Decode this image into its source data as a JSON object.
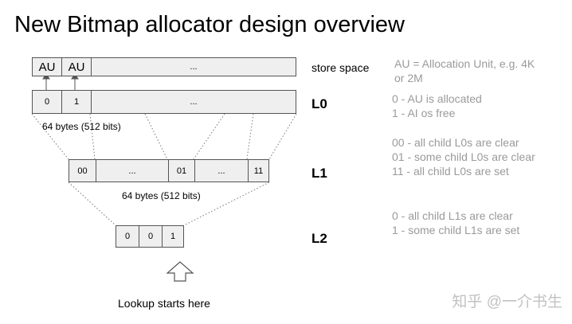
{
  "title": "New Bitmap allocator design overview",
  "store_space": {
    "label": "store space",
    "cells": [
      "AU",
      "AU",
      "..."
    ]
  },
  "l0": {
    "level": "L0",
    "cells": [
      "0",
      "1",
      "..."
    ],
    "caption": "64 bytes (512 bits)"
  },
  "l1": {
    "level": "L1",
    "cells": [
      "00",
      "...",
      "01",
      "...",
      "11"
    ],
    "caption": "64 bytes (512 bits)"
  },
  "l2": {
    "level": "L2",
    "cells": [
      "0",
      "0",
      "1"
    ]
  },
  "lookup": {
    "label": "Lookup starts here",
    "icon": "up-arrow-icon"
  },
  "notes": {
    "au": [
      "AU = Allocation Unit, e.g. 4K",
      "or 2M"
    ],
    "l0": [
      "0 - AU is allocated",
      "1 - AI os free"
    ],
    "l1": [
      "00 - all child L0s are clear",
      "01 - some child L0s are clear",
      "11 - all child L0s are set"
    ],
    "l2": [
      "0 - all child L1s are clear",
      "1 - some child L1s are set"
    ]
  },
  "watermark": "知乎 @一介书生",
  "colors": {
    "box_fill": "#efefef",
    "box_border": "#555555",
    "note_text": "#9a9a9a",
    "watermark": "#c2c2c2"
  }
}
